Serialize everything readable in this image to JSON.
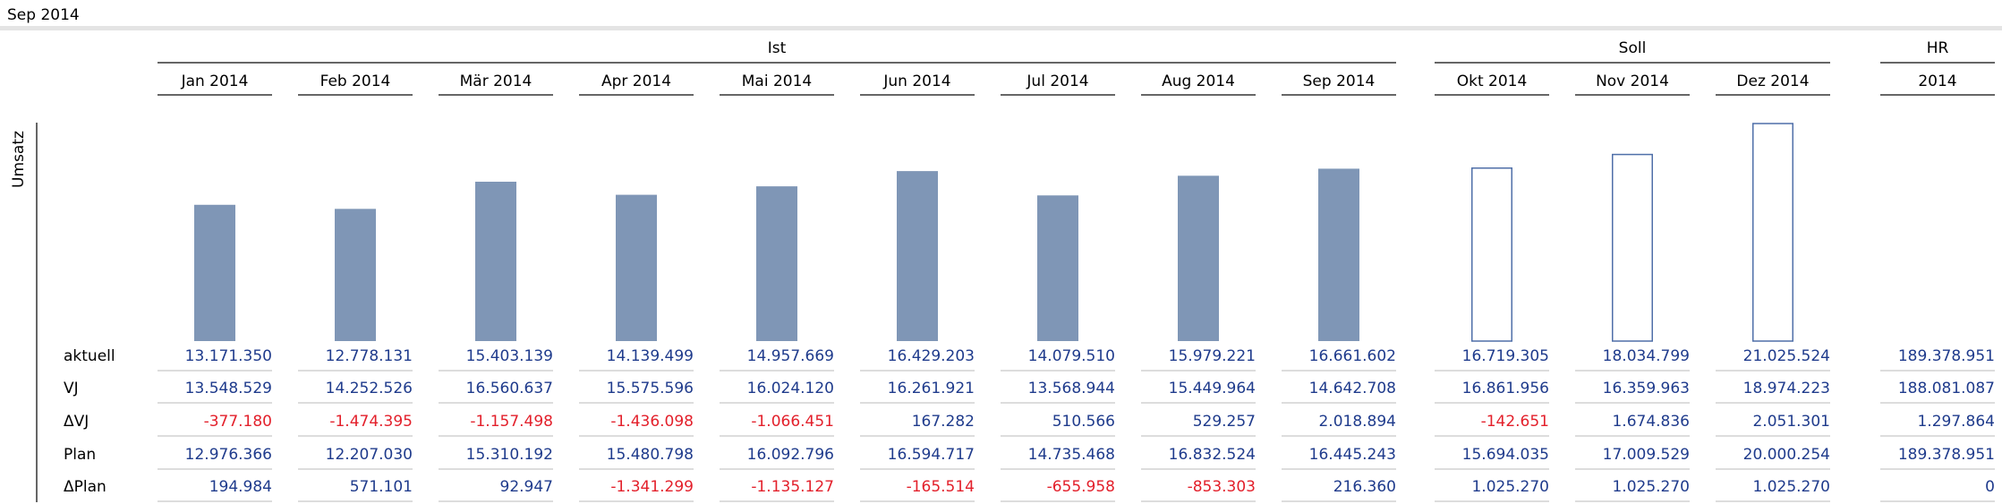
{
  "chart_data": {
    "type": "bar",
    "title": "Sep 2014",
    "y_label": "Umsatz",
    "bar_color": "#7f96b6",
    "outline_color": "#4f6fa8",
    "text_color": "#1f3b8c",
    "negative_color": "#e3202b",
    "row_labels": [
      "aktuell",
      "VJ",
      "ΔVJ",
      "Plan",
      "ΔPlan"
    ],
    "groups": [
      {
        "name": "Ist",
        "bar_style": "filled",
        "categories": [
          "Jan 2014",
          "Feb 2014",
          "Mär 2014",
          "Apr 2014",
          "Mai 2014",
          "Jun 2014",
          "Jul 2014",
          "Aug 2014",
          "Sep 2014"
        ],
        "rows": [
          {
            "values": [
              13171350,
              12778131,
              15403139,
              14139499,
              14957669,
              16429203,
              14079510,
              15979221,
              16661602
            ],
            "value_labels": [
              "13.171.350",
              "12.778.131",
              "15.403.139",
              "14.139.499",
              "14.957.669",
              "16.429.203",
              "14.079.510",
              "15.979.221",
              "16.661.602"
            ]
          },
          {
            "values": [
              13548529,
              14252526,
              16560637,
              15575596,
              16024120,
              16261921,
              13568944,
              15449964,
              14642708
            ],
            "value_labels": [
              "13.548.529",
              "14.252.526",
              "16.560.637",
              "15.575.596",
              "16.024.120",
              "16.261.921",
              "13.568.944",
              "15.449.964",
              "14.642.708"
            ]
          },
          {
            "values": [
              -377180,
              -1474395,
              -1157498,
              -1436098,
              -1066451,
              167282,
              510566,
              529257,
              2018894
            ],
            "value_labels": [
              "-377.180",
              "-1.474.395",
              "-1.157.498",
              "-1.436.098",
              "-1.066.451",
              "167.282",
              "510.566",
              "529.257",
              "2.018.894"
            ]
          },
          {
            "values": [
              12976366,
              12207030,
              15310192,
              15480798,
              16092796,
              16594717,
              14735468,
              16832524,
              16445243
            ],
            "value_labels": [
              "12.976.366",
              "12.207.030",
              "15.310.192",
              "15.480.798",
              "16.092.796",
              "16.594.717",
              "14.735.468",
              "16.832.524",
              "16.445.243"
            ]
          },
          {
            "values": [
              194984,
              571101,
              92947,
              -1341299,
              -1135127,
              -165514,
              -655958,
              -853303,
              216360
            ],
            "value_labels": [
              "194.984",
              "571.101",
              "92.947",
              "-1.341.299",
              "-1.135.127",
              "-165.514",
              "-655.958",
              "-853.303",
              "216.360"
            ]
          }
        ]
      },
      {
        "name": "Soll",
        "bar_style": "outline",
        "categories": [
          "Okt 2014",
          "Nov 2014",
          "Dez 2014"
        ],
        "rows": [
          {
            "values": [
              16719305,
              18034799,
              21025524
            ],
            "value_labels": [
              "16.719.305",
              "18.034.799",
              "21.025.524"
            ]
          },
          {
            "values": [
              16861956,
              16359963,
              18974223
            ],
            "value_labels": [
              "16.861.956",
              "16.359.963",
              "18.974.223"
            ]
          },
          {
            "values": [
              -142651,
              1674836,
              2051301
            ],
            "value_labels": [
              "-142.651",
              "1.674.836",
              "2.051.301"
            ]
          },
          {
            "values": [
              15694035,
              17009529,
              20000254
            ],
            "value_labels": [
              "15.694.035",
              "17.009.529",
              "20.000.254"
            ]
          },
          {
            "values": [
              1025270,
              1025270,
              1025270
            ],
            "value_labels": [
              "1.025.270",
              "1.025.270",
              "1.025.270"
            ]
          }
        ]
      },
      {
        "name": "HR",
        "bar_style": "none",
        "categories": [
          "2014"
        ],
        "rows": [
          {
            "values": [
              189378951
            ],
            "value_labels": [
              "189.378.951"
            ]
          },
          {
            "values": [
              188081087
            ],
            "value_labels": [
              "188.081.087"
            ]
          },
          {
            "values": [
              1297864
            ],
            "value_labels": [
              "1.297.864"
            ]
          },
          {
            "values": [
              189378951
            ],
            "value_labels": [
              "189.378.951"
            ]
          },
          {
            "values": [
              0
            ]
          }
        ]
      }
    ]
  }
}
